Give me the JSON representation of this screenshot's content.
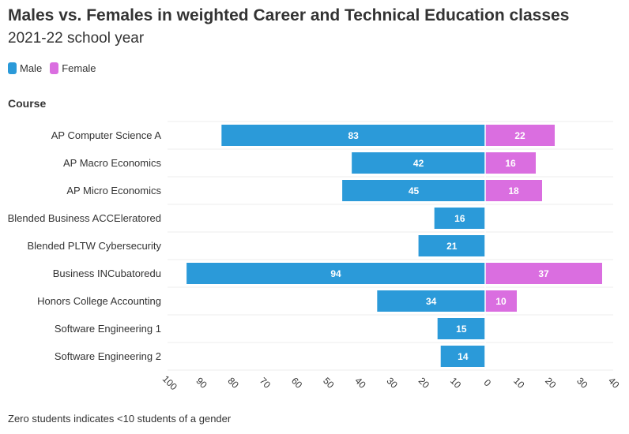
{
  "title": "Males vs. Females in weighted Career and Technical Education classes",
  "subtitle": "2021-22 school year",
  "legend": [
    {
      "label": "Male",
      "color": "#2b9ad9"
    },
    {
      "label": "Female",
      "color": "#da6ee0"
    }
  ],
  "footnote": "Zero students indicates <10 students of a gender",
  "chart_data": {
    "type": "bar",
    "orientation": "horizontal",
    "layout": "diverging",
    "title": "Males vs. Females in weighted Career and Technical Education classes",
    "subtitle": "2021-22 school year",
    "ylabel": "Course",
    "xlabel": "",
    "categories": [
      "AP Computer Science A",
      "AP Macro Economics",
      "AP Micro Economics",
      "Blended Business ACCEleratored",
      "Blended PLTW Cybersecurity",
      "Business INCubatoredu",
      "Honors College Accounting",
      "Software Engineering 1",
      "Software Engineering 2"
    ],
    "series": [
      {
        "name": "Male",
        "color": "#2b9ad9",
        "side": "left",
        "values": [
          83,
          42,
          45,
          16,
          21,
          94,
          34,
          15,
          14
        ]
      },
      {
        "name": "Female",
        "color": "#da6ee0",
        "side": "right",
        "values": [
          22,
          16,
          18,
          0,
          0,
          37,
          10,
          0,
          0
        ]
      }
    ],
    "xlim_left": [
      0,
      100
    ],
    "xlim_right": [
      0,
      40
    ],
    "ticks_left": [
      "100",
      "90",
      "80",
      "70",
      "60",
      "50",
      "40",
      "30",
      "20",
      "10",
      "0"
    ],
    "ticks_right": [
      "10",
      "20",
      "30",
      "40"
    ],
    "grid": true
  }
}
